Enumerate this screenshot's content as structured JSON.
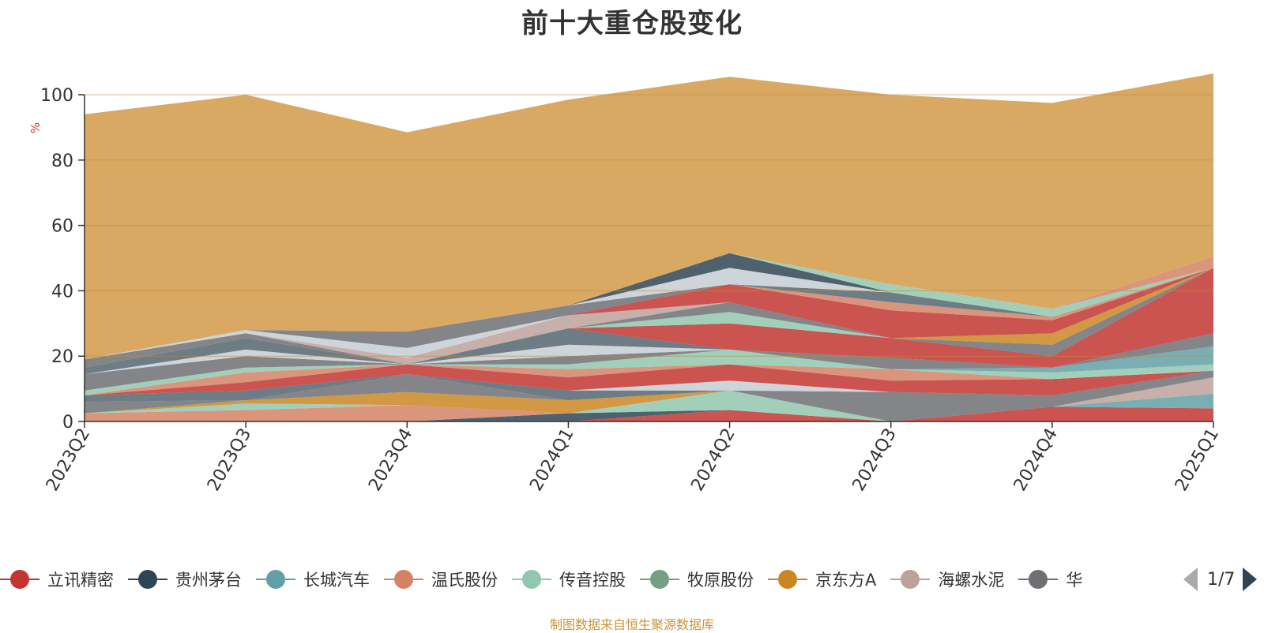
{
  "chart_data": {
    "type": "area",
    "stacked": true,
    "title": "前十大重仓股变化",
    "ylabel": "%",
    "ylim": [
      0,
      100
    ],
    "yticks": [
      "0",
      "20",
      "40",
      "60",
      "80",
      "100"
    ],
    "categories": [
      "2023Q2",
      "2023Q3",
      "2023Q4",
      "2024Q1",
      "2024Q2",
      "2024Q3",
      "2024Q4",
      "2025Q1"
    ],
    "grid": true,
    "legend_position": "bottom",
    "series": [
      {
        "name": "立讯精密",
        "color": "#c23531",
        "values": [
          0,
          0,
          0,
          0,
          3.5,
          0,
          4.5,
          4
        ]
      },
      {
        "name": "贵州茅台",
        "color": "#2f4554",
        "values": [
          0,
          0,
          0,
          2.5,
          0,
          0,
          0,
          0
        ]
      },
      {
        "name": "长城汽车",
        "color": "#61a0a8",
        "values": [
          0,
          0,
          0,
          0,
          0,
          0,
          0,
          4.5
        ]
      },
      {
        "name": "温氏股份",
        "color": "#d48265",
        "values": [
          2.5,
          3.5,
          5,
          0,
          0,
          0,
          0,
          0
        ]
      },
      {
        "name": "传音控股",
        "color": "#91c7ae",
        "values": [
          0,
          2,
          0,
          0,
          6,
          0,
          0,
          0
        ]
      },
      {
        "name": "牧原股份",
        "color": "#749f83",
        "values": [
          0,
          0,
          0,
          0,
          0,
          0,
          0,
          0
        ]
      },
      {
        "name": "京东方A",
        "color": "#ca8622",
        "values": [
          0,
          1,
          4,
          4,
          0,
          0,
          0,
          0
        ]
      },
      {
        "name": "海螺水泥",
        "color": "#bda29a",
        "values": [
          0,
          0,
          0,
          0,
          0,
          0,
          0,
          5
        ]
      },
      {
        "name": "华",
        "color": "#6e7074",
        "values": [
          3.5,
          0,
          5.5,
          0,
          0,
          9,
          3.5,
          2
        ]
      },
      {
        "name": "",
        "color": "#546570",
        "values": [
          2,
          3,
          0,
          3,
          0,
          0,
          0,
          0
        ]
      },
      {
        "name": "",
        "color": "#c4ccd3",
        "values": [
          0,
          0,
          0,
          0,
          3,
          0,
          0,
          0
        ]
      },
      {
        "name": "",
        "color": "#c23531",
        "values": [
          0,
          2.5,
          3,
          4,
          5,
          3.5,
          5,
          0
        ]
      },
      {
        "name": "",
        "color": "#d48265",
        "values": [
          0,
          3,
          0,
          2.5,
          0,
          3.5,
          0,
          0
        ]
      },
      {
        "name": "",
        "color": "#91c7ae",
        "values": [
          1.5,
          1.5,
          0,
          1.5,
          4.5,
          0,
          2,
          2
        ]
      },
      {
        "name": "",
        "color": "#61a0a8",
        "values": [
          0,
          0,
          0,
          0,
          0,
          0,
          1.5,
          5.5
        ]
      },
      {
        "name": "",
        "color": "#6e7074",
        "values": [
          5,
          3.5,
          0,
          2.5,
          0,
          3.5,
          0,
          4
        ]
      },
      {
        "name": "",
        "color": "#c4ccd3",
        "values": [
          0,
          2,
          0,
          3.5,
          0,
          0,
          0,
          0
        ]
      },
      {
        "name": "",
        "color": "#546570",
        "values": [
          2,
          3.5,
          0,
          5,
          0,
          0,
          0,
          0
        ]
      },
      {
        "name": "",
        "color": "#c23531",
        "values": [
          0,
          0,
          0,
          0,
          8,
          6,
          3.5,
          20
        ]
      },
      {
        "name": "",
        "color": "#91c7ae",
        "values": [
          0,
          0,
          0,
          0,
          3.5,
          0,
          0,
          0
        ]
      },
      {
        "name": "",
        "color": "#6e7074",
        "values": [
          2.5,
          1.5,
          0,
          0,
          3,
          0,
          3.5,
          0
        ]
      },
      {
        "name": "",
        "color": "#bda29a",
        "values": [
          0,
          0,
          2,
          4,
          0,
          0,
          0,
          0
        ]
      },
      {
        "name": "",
        "color": "#c4ccd3",
        "values": [
          0,
          1,
          3,
          0,
          0,
          0,
          0,
          0
        ]
      },
      {
        "name": "",
        "color": "#ca8622",
        "values": [
          0,
          0,
          0,
          0,
          0,
          0,
          3.5,
          0
        ]
      },
      {
        "name": "",
        "color": "#c23531",
        "values": [
          0,
          0,
          0,
          0,
          5.5,
          8.5,
          4,
          0
        ]
      },
      {
        "name": "",
        "color": "#d48265",
        "values": [
          0,
          0,
          0,
          0,
          0,
          2.5,
          1,
          0
        ]
      },
      {
        "name": "",
        "color": "#6e7074",
        "values": [
          0,
          0,
          5,
          3,
          0,
          0,
          0,
          0
        ]
      },
      {
        "name": "",
        "color": "#546570",
        "values": [
          0,
          0,
          0,
          0,
          0,
          3,
          0,
          0
        ]
      },
      {
        "name": "",
        "color": "#c4ccd3",
        "values": [
          0,
          0,
          0,
          0,
          5,
          0,
          0,
          0
        ]
      },
      {
        "name": "",
        "color": "#61a0a8",
        "values": [
          0,
          0,
          0,
          0,
          0,
          0,
          0,
          0
        ]
      },
      {
        "name": "",
        "color": "#2f4554",
        "values": [
          0,
          0,
          0,
          0,
          4.5,
          0,
          0,
          0
        ]
      },
      {
        "name": "",
        "color": "#91c7ae",
        "values": [
          0,
          0,
          0,
          0,
          0,
          2.5,
          2.5,
          0
        ]
      },
      {
        "name": "",
        "color": "#d48265",
        "values": [
          0,
          0,
          0,
          0,
          0,
          0,
          0,
          3.5
        ]
      },
      {
        "name": "",
        "color": "#d9a964",
        "values": [
          75,
          72,
          61,
          63,
          54,
          58,
          63,
          56
        ]
      }
    ]
  },
  "legend": {
    "items": [
      {
        "label": "立讯精密",
        "color": "#c23531",
        "icon": "circle-marker-icon"
      },
      {
        "label": "贵州茅台",
        "color": "#2f4554",
        "icon": "circle-marker-icon"
      },
      {
        "label": "长城汽车",
        "color": "#61a0a8",
        "icon": "circle-marker-icon"
      },
      {
        "label": "温氏股份",
        "color": "#d48265",
        "icon": "circle-marker-icon"
      },
      {
        "label": "传音控股",
        "color": "#91c7ae",
        "icon": "circle-marker-icon"
      },
      {
        "label": "牧原股份",
        "color": "#749f83",
        "icon": "circle-marker-icon"
      },
      {
        "label": "京东方A",
        "color": "#ca8622",
        "icon": "circle-marker-icon"
      },
      {
        "label": "海螺水泥",
        "color": "#bda29a",
        "icon": "circle-marker-icon"
      },
      {
        "label": "华",
        "color": "#6e7074",
        "icon": "circle-marker-icon"
      }
    ]
  },
  "pager": {
    "text": "1/7",
    "prev_icon": "triangle-left-icon",
    "next_icon": "triangle-right-icon",
    "prev_color": "#aaaaaa",
    "next_color": "#2f4554"
  },
  "footer": {
    "source_note": "制图数据来自恒生聚源数据库",
    "color": "#c8963e"
  },
  "styles": {
    "title_color": "#333333",
    "axis_color": "#333333",
    "ylabel_color": "#e03030",
    "grid_color": "#c08a40"
  }
}
